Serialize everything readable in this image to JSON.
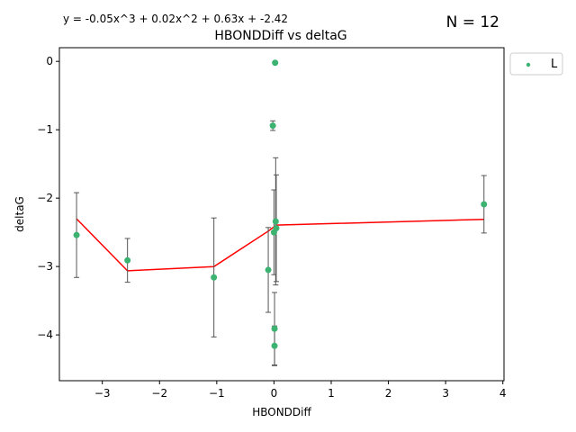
{
  "header": {
    "equation": "y = -0.05x^3 + 0.02x^2 + 0.63x + -2.42",
    "count": "N = 12"
  },
  "chart_data": {
    "type": "scatter",
    "title": "HBONDDiff vs deltaG",
    "xlabel": "HBONDDiff",
    "ylabel": "deltaG",
    "xlim": [
      -3.75,
      4.02
    ],
    "ylim": [
      -4.67,
      0.2
    ],
    "xticks": [
      -3,
      -2,
      -1,
      0,
      1,
      2,
      3,
      4
    ],
    "xtick_labels": [
      "−3",
      "−2",
      "−1",
      "0",
      "1",
      "2",
      "3",
      "4"
    ],
    "yticks": [
      0,
      -1,
      -2,
      -3,
      -4
    ],
    "ytick_labels": [
      "0",
      "−1",
      "−2",
      "−3",
      "−4"
    ],
    "grid": false,
    "legend_position": "outside-top-right",
    "series": [
      {
        "name": "L",
        "color": "#3cb371",
        "points": [
          {
            "x": -3.45,
            "y": -2.54,
            "err": 0.62
          },
          {
            "x": -2.56,
            "y": -2.91,
            "err": 0.32
          },
          {
            "x": -1.05,
            "y": -3.16,
            "err": 0.87
          },
          {
            "x": -0.1,
            "y": -3.05,
            "err": 0.62
          },
          {
            "x": -0.02,
            "y": -0.94,
            "err": 0.07
          },
          {
            "x": 0.0,
            "y": -2.5,
            "err": 0.62
          },
          {
            "x": 0.01,
            "y": -3.91,
            "err": 0.53
          },
          {
            "x": 0.01,
            "y": -4.16,
            "err": 0.29
          },
          {
            "x": 0.02,
            "y": -0.02,
            "err": 0.0
          },
          {
            "x": 0.03,
            "y": -2.34,
            "err": 0.93
          },
          {
            "x": 0.04,
            "y": -2.44,
            "err": 0.78
          },
          {
            "x": 3.67,
            "y": -2.09,
            "err": 0.42
          }
        ]
      }
    ],
    "fit": {
      "coefficients": [
        -0.05,
        0.02,
        0.63,
        -2.42
      ],
      "color": "#ff0000"
    }
  }
}
